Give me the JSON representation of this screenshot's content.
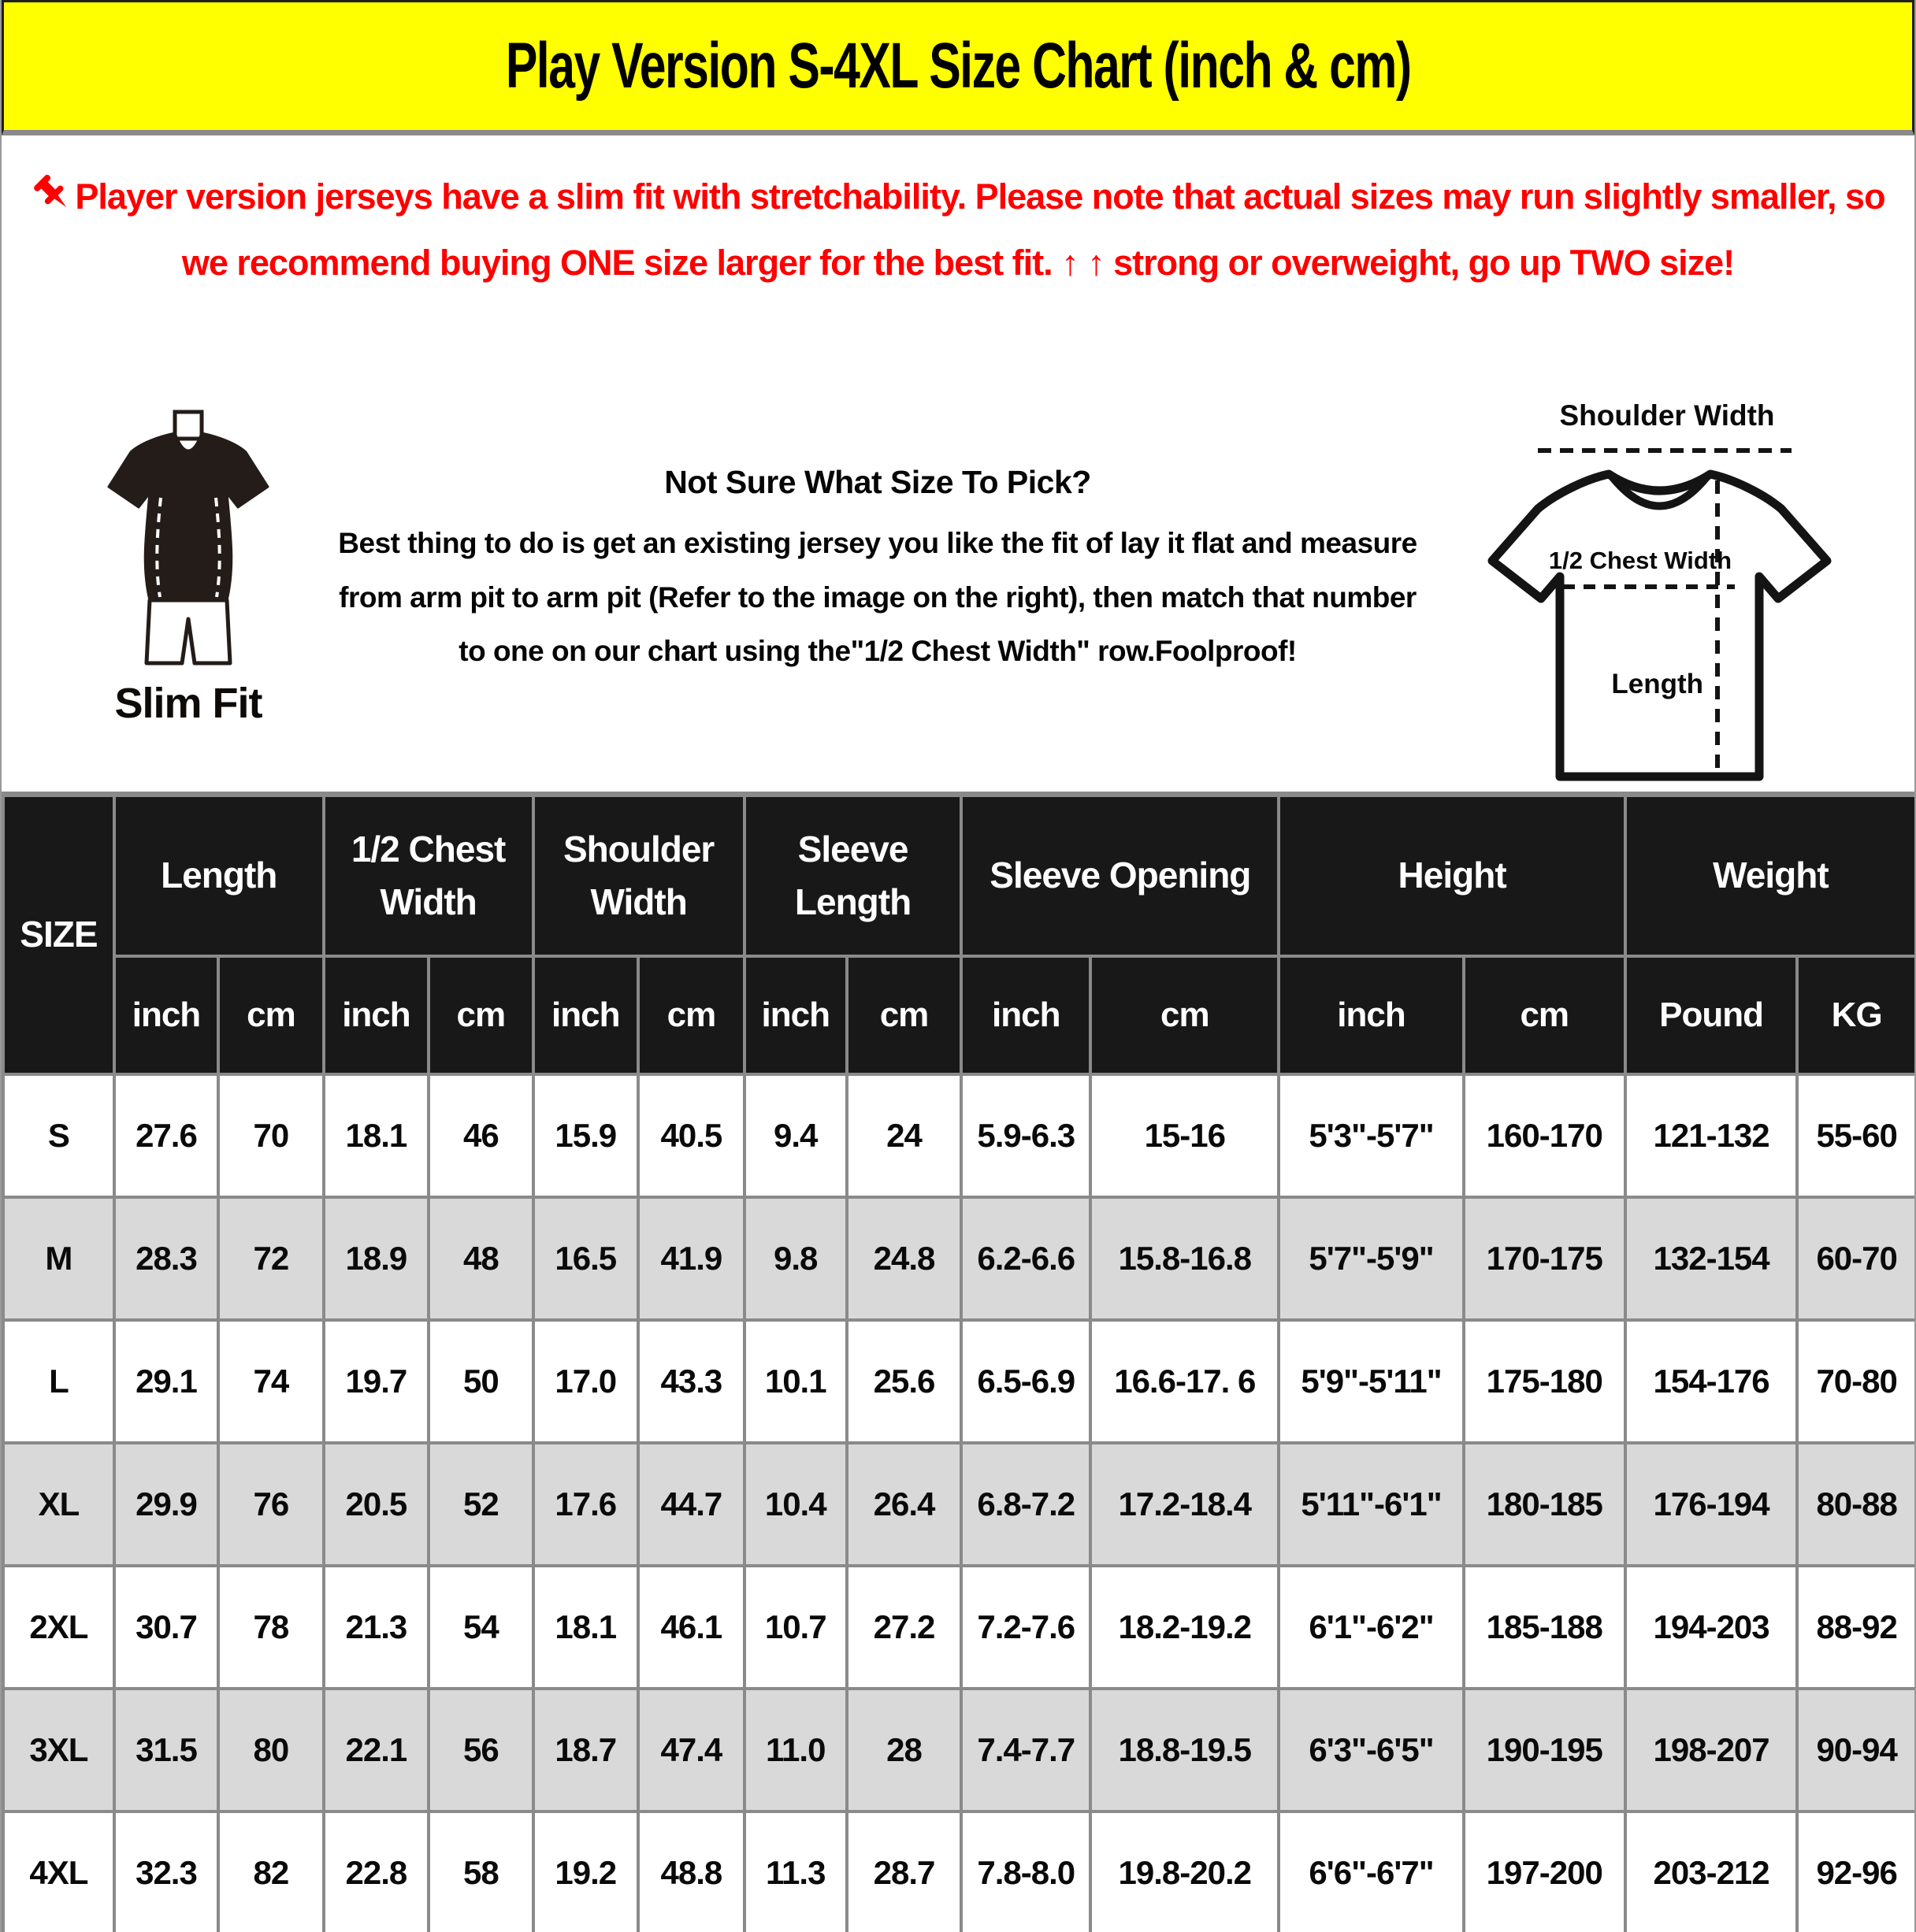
{
  "colors": {
    "accent_yellow": "#FFFF00",
    "warning_red": "#FF0000",
    "table_header_bg": "#181818",
    "row_alt_gray": "#D9D9D9",
    "grid_gray": "#8A8A8A"
  },
  "header": {
    "title": "Play Version S-4XL Size Chart (inch & cm)"
  },
  "warning": {
    "pin_icon": "pushpin-icon",
    "text": "Player version jerseys have a slim fit with stretchability. Please note that actual sizes may run slightly smaller, so we recommend buying ONE size larger for the best fit. ↑ ↑ strong or overweight, go up TWO size!"
  },
  "fit_guide": {
    "slim_fit_label": "Slim Fit",
    "heading": "Not Sure What Size To Pick?",
    "body": "Best thing to do is get an existing jersey you like the fit of lay it flat and measure from arm pit to arm pit (Refer to the image on the right), then match that number to one on our chart using the\"1/2 Chest Width\" row.Foolproof!",
    "diagram": {
      "shoulder_label": "Shoulder Width",
      "chest_label": "1/2 Chest Width",
      "length_label": "Length"
    }
  },
  "chart_data": {
    "type": "table",
    "title": "Play Version S-4XL Size Chart (inch & cm)",
    "size_header": "SIZE",
    "groups": [
      {
        "label": "Length",
        "units": [
          "inch",
          "cm"
        ]
      },
      {
        "label": "1/2 Chest Width",
        "units": [
          "inch",
          "cm"
        ]
      },
      {
        "label": "Shoulder Width",
        "units": [
          "inch",
          "cm"
        ]
      },
      {
        "label": "Sleeve Length",
        "units": [
          "inch",
          "cm"
        ]
      },
      {
        "label": "Sleeve Opening",
        "units": [
          "inch",
          "cm"
        ]
      },
      {
        "label": "Height",
        "units": [
          "inch",
          "cm"
        ]
      },
      {
        "label": "Weight",
        "units": [
          "Pound",
          "KG"
        ]
      }
    ],
    "rows": [
      {
        "size": "S",
        "values": [
          "27.6",
          "70",
          "18.1",
          "46",
          "15.9",
          "40.5",
          "9.4",
          "24",
          "5.9-6.3",
          "15-16",
          "5'3\"-5'7\"",
          "160-170",
          "121-132",
          "55-60"
        ]
      },
      {
        "size": "M",
        "values": [
          "28.3",
          "72",
          "18.9",
          "48",
          "16.5",
          "41.9",
          "9.8",
          "24.8",
          "6.2-6.6",
          "15.8-16.8",
          "5'7\"-5'9\"",
          "170-175",
          "132-154",
          "60-70"
        ]
      },
      {
        "size": "L",
        "values": [
          "29.1",
          "74",
          "19.7",
          "50",
          "17.0",
          "43.3",
          "10.1",
          "25.6",
          "6.5-6.9",
          "16.6-17. 6",
          "5'9\"-5'11\"",
          "175-180",
          "154-176",
          "70-80"
        ]
      },
      {
        "size": "XL",
        "values": [
          "29.9",
          "76",
          "20.5",
          "52",
          "17.6",
          "44.7",
          "10.4",
          "26.4",
          "6.8-7.2",
          "17.2-18.4",
          "5'11\"-6'1\"",
          "180-185",
          "176-194",
          "80-88"
        ]
      },
      {
        "size": "2XL",
        "values": [
          "30.7",
          "78",
          "21.3",
          "54",
          "18.1",
          "46.1",
          "10.7",
          "27.2",
          "7.2-7.6",
          "18.2-19.2",
          "6'1\"-6'2\"",
          "185-188",
          "194-203",
          "88-92"
        ]
      },
      {
        "size": "3XL",
        "values": [
          "31.5",
          "80",
          "22.1",
          "56",
          "18.7",
          "47.4",
          "11.0",
          "28",
          "7.4-7.7",
          "18.8-19.5",
          "6'3\"-6'5\"",
          "190-195",
          "198-207",
          "90-94"
        ]
      },
      {
        "size": "4XL",
        "values": [
          "32.3",
          "82",
          "22.8",
          "58",
          "19.2",
          "48.8",
          "11.3",
          "28.7",
          "7.8-8.0",
          "19.8-20.2",
          "6'6\"-6'7\"",
          "197-200",
          "203-212",
          "92-96"
        ]
      }
    ]
  }
}
